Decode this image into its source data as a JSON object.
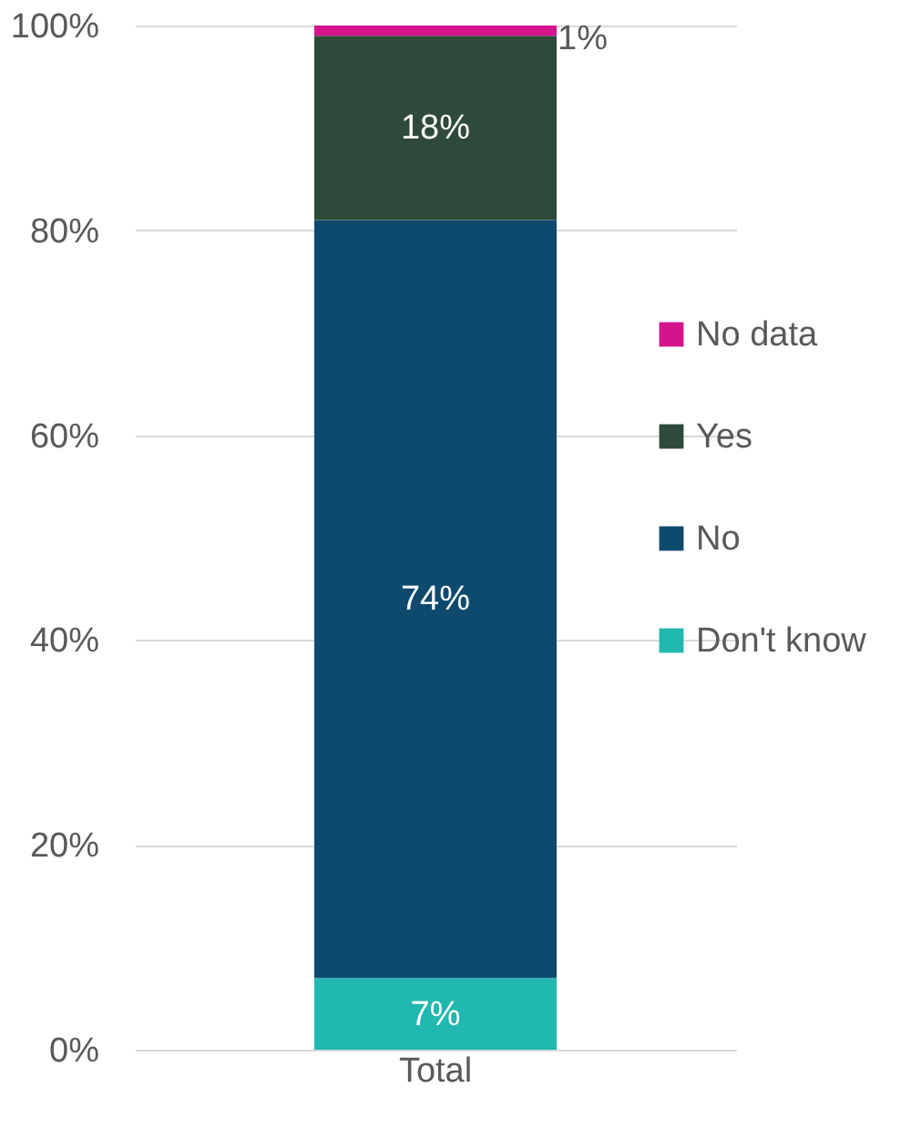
{
  "chart_data": {
    "type": "bar",
    "stacked": true,
    "categories": [
      "Total"
    ],
    "series": [
      {
        "name": "Don't know",
        "color": "#20b8b0",
        "values": [
          7
        ],
        "value_labels": [
          "7%"
        ]
      },
      {
        "name": "No",
        "color": "#0e4a6e",
        "values": [
          74
        ],
        "value_labels": [
          "74%"
        ]
      },
      {
        "name": "Yes",
        "color": "#2e4a3a",
        "values": [
          18
        ],
        "value_labels": [
          "18%"
        ]
      },
      {
        "name": "No data",
        "color": "#d4148c",
        "values": [
          1
        ],
        "value_labels": [
          "1%"
        ]
      }
    ],
    "ylim": [
      0,
      100
    ],
    "yticks": [
      {
        "value": 0,
        "label": "0%"
      },
      {
        "value": 20,
        "label": "20%"
      },
      {
        "value": 40,
        "label": "40%"
      },
      {
        "value": 60,
        "label": "60%"
      },
      {
        "value": 80,
        "label": "80%"
      },
      {
        "value": 100,
        "label": "100%"
      }
    ],
    "grid": "y",
    "legend": "right"
  }
}
